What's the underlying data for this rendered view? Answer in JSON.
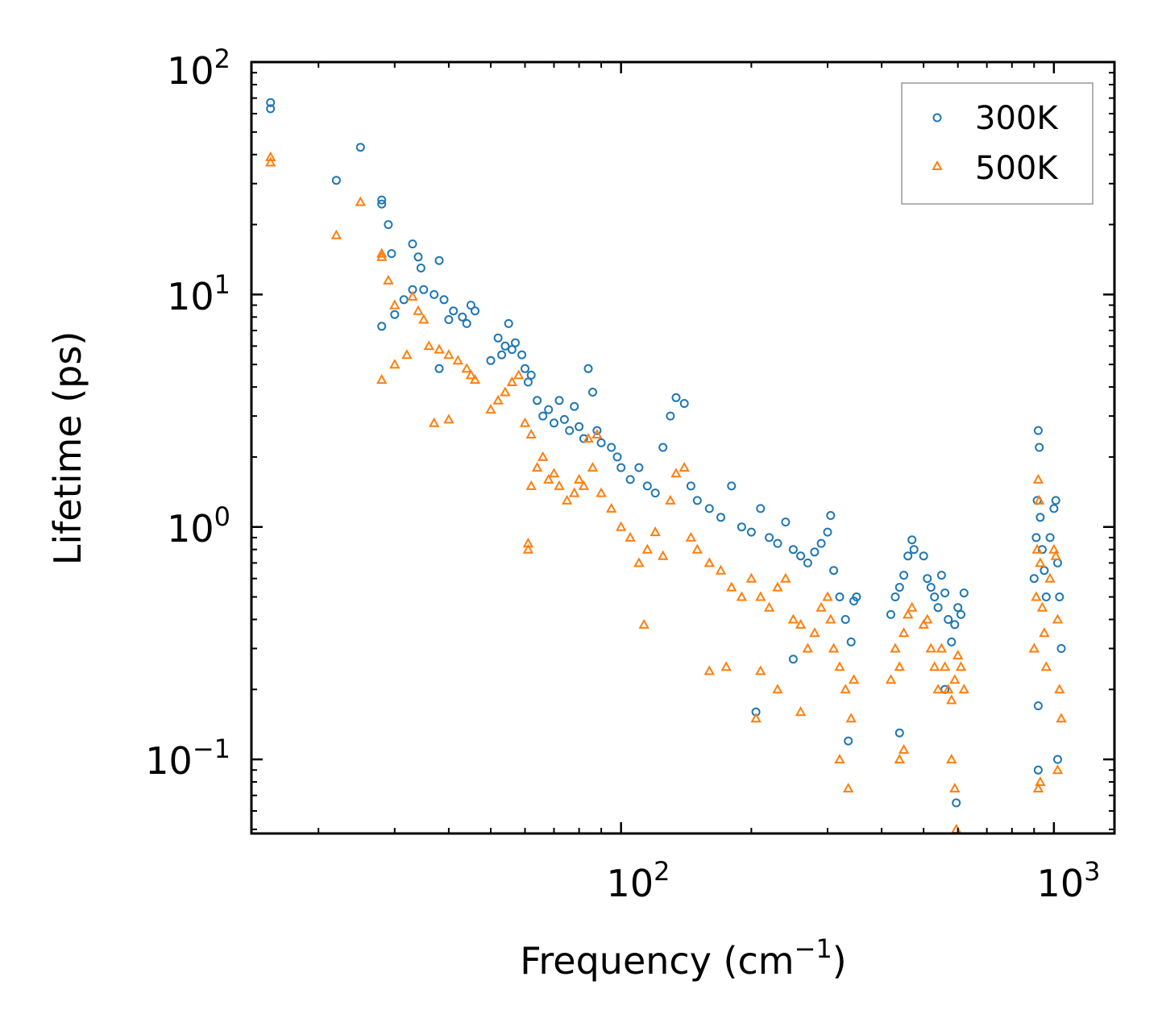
{
  "chart_data": {
    "type": "scatter",
    "xscale": "log",
    "yscale": "log",
    "xlim": [
      14,
      1380
    ],
    "ylim": [
      0.048,
      100
    ],
    "xlabel": "Frequency (cm",
    "xlabel_sup": "−1",
    "xlabel_suffix": ")",
    "ylabel": "Lifetime (ps)",
    "legend_position": "top-right",
    "x_ticks": [
      {
        "value": 100,
        "base": "10",
        "exp": "2"
      },
      {
        "value": 1000,
        "base": "10",
        "exp": "3"
      }
    ],
    "y_ticks": [
      {
        "value": 0.1,
        "base": "10",
        "exp": "−1"
      },
      {
        "value": 1,
        "base": "10",
        "exp": "0"
      },
      {
        "value": 10,
        "base": "10",
        "exp": "1"
      },
      {
        "value": 100,
        "base": "10",
        "exp": "2"
      }
    ],
    "series": [
      {
        "name": "300K",
        "marker": "circle",
        "color": "#1f77b4",
        "points": [
          [
            15.5,
            67
          ],
          [
            15.5,
            63
          ],
          [
            22,
            31
          ],
          [
            25,
            43
          ],
          [
            28,
            25.5
          ],
          [
            28,
            24.5
          ],
          [
            29,
            20
          ],
          [
            29.5,
            15
          ],
          [
            30,
            8.2
          ],
          [
            28,
            7.3
          ],
          [
            33,
            16.5
          ],
          [
            34,
            14.5
          ],
          [
            34.5,
            13
          ],
          [
            38,
            14
          ],
          [
            31.5,
            9.5
          ],
          [
            33,
            10.5
          ],
          [
            35,
            10.5
          ],
          [
            37,
            10
          ],
          [
            39,
            9.5
          ],
          [
            41,
            8.5
          ],
          [
            43,
            8
          ],
          [
            44,
            7.5
          ],
          [
            45,
            9
          ],
          [
            46,
            8.5
          ],
          [
            40,
            7.8
          ],
          [
            38,
            4.8
          ],
          [
            50,
            5.2
          ],
          [
            52,
            6.5
          ],
          [
            53,
            5.5
          ],
          [
            54,
            6
          ],
          [
            55,
            7.5
          ],
          [
            56,
            5.8
          ],
          [
            57,
            6.2
          ],
          [
            59,
            5.5
          ],
          [
            60,
            4.8
          ],
          [
            61,
            4.2
          ],
          [
            62,
            4.5
          ],
          [
            64,
            3.5
          ],
          [
            66,
            3
          ],
          [
            68,
            3.2
          ],
          [
            70,
            2.8
          ],
          [
            72,
            3.5
          ],
          [
            74,
            2.9
          ],
          [
            76,
            2.6
          ],
          [
            78,
            3.3
          ],
          [
            80,
            2.7
          ],
          [
            82,
            2.4
          ],
          [
            84,
            4.8
          ],
          [
            86,
            3.8
          ],
          [
            88,
            2.6
          ],
          [
            90,
            2.3
          ],
          [
            95,
            2.2
          ],
          [
            98,
            2.0
          ],
          [
            100,
            1.8
          ],
          [
            105,
            1.6
          ],
          [
            110,
            1.8
          ],
          [
            115,
            1.5
          ],
          [
            120,
            1.4
          ],
          [
            125,
            2.2
          ],
          [
            130,
            3
          ],
          [
            134,
            3.6
          ],
          [
            140,
            3.4
          ],
          [
            145,
            1.5
          ],
          [
            150,
            1.3
          ],
          [
            160,
            1.2
          ],
          [
            170,
            1.1
          ],
          [
            180,
            1.5
          ],
          [
            190,
            1.0
          ],
          [
            200,
            0.95
          ],
          [
            210,
            1.2
          ],
          [
            220,
            0.9
          ],
          [
            230,
            0.85
          ],
          [
            240,
            1.05
          ],
          [
            250,
            0.8
          ],
          [
            260,
            0.75
          ],
          [
            270,
            0.7
          ],
          [
            280,
            0.78
          ],
          [
            290,
            0.85
          ],
          [
            300,
            0.95
          ],
          [
            305,
            1.12
          ],
          [
            310,
            0.65
          ],
          [
            320,
            0.5
          ],
          [
            330,
            0.4
          ],
          [
            340,
            0.32
          ],
          [
            345,
            0.48
          ],
          [
            350,
            0.5
          ],
          [
            335,
            0.12
          ],
          [
            205,
            0.16
          ],
          [
            250,
            0.27
          ],
          [
            420,
            0.42
          ],
          [
            430,
            0.5
          ],
          [
            440,
            0.55
          ],
          [
            450,
            0.62
          ],
          [
            460,
            0.75
          ],
          [
            470,
            0.88
          ],
          [
            475,
            0.8
          ],
          [
            440,
            0.13
          ],
          [
            500,
            0.75
          ],
          [
            510,
            0.6
          ],
          [
            520,
            0.55
          ],
          [
            530,
            0.5
          ],
          [
            540,
            0.45
          ],
          [
            550,
            0.62
          ],
          [
            560,
            0.52
          ],
          [
            570,
            0.4
          ],
          [
            580,
            0.32
          ],
          [
            590,
            0.38
          ],
          [
            600,
            0.45
          ],
          [
            610,
            0.42
          ],
          [
            620,
            0.52
          ],
          [
            595,
            0.065
          ],
          [
            560,
            0.2
          ],
          [
            900,
            0.6
          ],
          [
            910,
            0.9
          ],
          [
            915,
            1.3
          ],
          [
            920,
            2.6
          ],
          [
            925,
            2.2
          ],
          [
            930,
            1.1
          ],
          [
            940,
            0.8
          ],
          [
            950,
            0.65
          ],
          [
            960,
            0.5
          ],
          [
            980,
            0.9
          ],
          [
            1000,
            1.2
          ],
          [
            1010,
            1.3
          ],
          [
            1020,
            0.7
          ],
          [
            1030,
            0.5
          ],
          [
            1040,
            0.3
          ],
          [
            920,
            0.09
          ],
          [
            1020,
            0.1
          ],
          [
            920,
            0.17
          ]
        ]
      },
      {
        "name": "500K",
        "marker": "triangle",
        "color": "#ff7f0e",
        "points": [
          [
            15.5,
            39
          ],
          [
            15.5,
            37
          ],
          [
            22,
            18
          ],
          [
            25,
            25
          ],
          [
            28,
            15
          ],
          [
            28,
            14.5
          ],
          [
            29,
            11.5
          ],
          [
            30,
            9
          ],
          [
            28,
            4.3
          ],
          [
            30,
            5
          ],
          [
            32,
            5.5
          ],
          [
            33,
            9.8
          ],
          [
            34,
            8.5
          ],
          [
            35,
            7.8
          ],
          [
            36,
            6
          ],
          [
            38,
            5.8
          ],
          [
            40,
            5.5
          ],
          [
            42,
            5.2
          ],
          [
            44,
            4.8
          ],
          [
            45,
            4.5
          ],
          [
            46,
            4.3
          ],
          [
            37,
            2.8
          ],
          [
            40,
            2.9
          ],
          [
            50,
            3.2
          ],
          [
            52,
            3.5
          ],
          [
            54,
            3.8
          ],
          [
            56,
            4.2
          ],
          [
            58,
            4.5
          ],
          [
            60,
            2.8
          ],
          [
            62,
            2.5
          ],
          [
            61,
            0.8
          ],
          [
            61,
            0.85
          ],
          [
            62,
            1.5
          ],
          [
            64,
            1.8
          ],
          [
            66,
            2
          ],
          [
            68,
            1.6
          ],
          [
            70,
            1.7
          ],
          [
            72,
            1.5
          ],
          [
            75,
            1.3
          ],
          [
            78,
            1.4
          ],
          [
            80,
            1.6
          ],
          [
            82,
            1.5
          ],
          [
            84,
            2.4
          ],
          [
            86,
            1.8
          ],
          [
            88,
            2.5
          ],
          [
            90,
            1.4
          ],
          [
            95,
            1.2
          ],
          [
            100,
            1.0
          ],
          [
            105,
            0.9
          ],
          [
            110,
            0.7
          ],
          [
            113,
            0.38
          ],
          [
            115,
            0.8
          ],
          [
            120,
            0.95
          ],
          [
            125,
            0.75
          ],
          [
            130,
            1.3
          ],
          [
            134,
            1.7
          ],
          [
            140,
            1.8
          ],
          [
            145,
            0.9
          ],
          [
            150,
            0.8
          ],
          [
            160,
            0.7
          ],
          [
            170,
            0.65
          ],
          [
            180,
            0.55
          ],
          [
            190,
            0.5
          ],
          [
            200,
            0.6
          ],
          [
            210,
            0.5
          ],
          [
            220,
            0.45
          ],
          [
            230,
            0.55
          ],
          [
            240,
            0.6
          ],
          [
            250,
            0.4
          ],
          [
            260,
            0.38
          ],
          [
            270,
            0.3
          ],
          [
            280,
            0.35
          ],
          [
            290,
            0.45
          ],
          [
            300,
            0.5
          ],
          [
            305,
            0.4
          ],
          [
            310,
            0.3
          ],
          [
            320,
            0.25
          ],
          [
            330,
            0.2
          ],
          [
            340,
            0.15
          ],
          [
            345,
            0.22
          ],
          [
            335,
            0.075
          ],
          [
            320,
            0.1
          ],
          [
            160,
            0.24
          ],
          [
            175,
            0.25
          ],
          [
            205,
            0.15
          ],
          [
            210,
            0.24
          ],
          [
            230,
            0.2
          ],
          [
            260,
            0.16
          ],
          [
            420,
            0.22
          ],
          [
            430,
            0.3
          ],
          [
            440,
            0.25
          ],
          [
            450,
            0.35
          ],
          [
            460,
            0.42
          ],
          [
            470,
            0.45
          ],
          [
            440,
            0.1
          ],
          [
            450,
            0.11
          ],
          [
            500,
            0.38
          ],
          [
            510,
            0.4
          ],
          [
            520,
            0.3
          ],
          [
            530,
            0.25
          ],
          [
            540,
            0.2
          ],
          [
            550,
            0.3
          ],
          [
            560,
            0.25
          ],
          [
            570,
            0.2
          ],
          [
            580,
            0.18
          ],
          [
            590,
            0.22
          ],
          [
            600,
            0.28
          ],
          [
            610,
            0.25
          ],
          [
            620,
            0.2
          ],
          [
            595,
            0.05
          ],
          [
            590,
            0.075
          ],
          [
            580,
            0.1
          ],
          [
            900,
            0.3
          ],
          [
            910,
            0.5
          ],
          [
            915,
            0.8
          ],
          [
            920,
            1.6
          ],
          [
            925,
            1.3
          ],
          [
            930,
            0.7
          ],
          [
            940,
            0.45
          ],
          [
            950,
            0.35
          ],
          [
            960,
            0.25
          ],
          [
            980,
            0.6
          ],
          [
            1000,
            0.8
          ],
          [
            1010,
            0.75
          ],
          [
            1020,
            0.4
          ],
          [
            1030,
            0.2
          ],
          [
            1040,
            0.15
          ],
          [
            920,
            0.075
          ],
          [
            930,
            0.08
          ],
          [
            1020,
            0.09
          ]
        ]
      }
    ]
  }
}
